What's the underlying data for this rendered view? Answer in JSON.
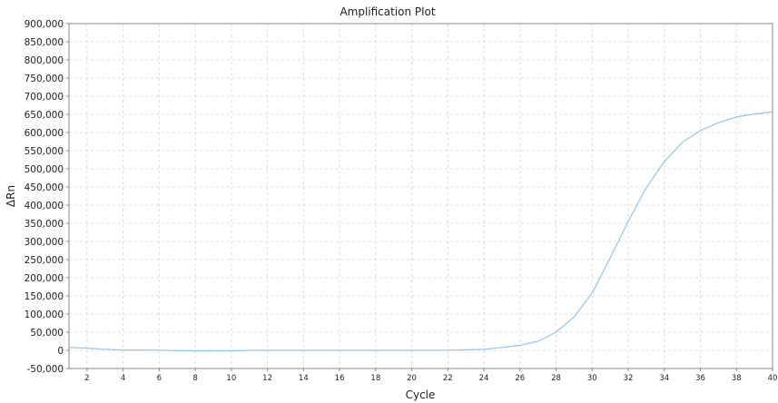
{
  "chart_data": {
    "type": "line",
    "title": "Amplification Plot",
    "xlabel": "Cycle",
    "ylabel": "ΔRn",
    "xlim": [
      1,
      40
    ],
    "ylim": [
      -50000,
      900000
    ],
    "grid": true,
    "legend": "none",
    "line_color": "#8ec4ef",
    "xticks": [
      2,
      4,
      6,
      8,
      10,
      12,
      14,
      16,
      18,
      20,
      22,
      24,
      26,
      28,
      30,
      32,
      34,
      36,
      38,
      40
    ],
    "xtick_labels": [
      "2",
      "4",
      "6",
      "8",
      "10",
      "12",
      "14",
      "16",
      "18",
      "20",
      "22",
      "24",
      "26",
      "28",
      "30",
      "32",
      "34",
      "36",
      "38",
      "40"
    ],
    "yticks": [
      -50000,
      0,
      50000,
      100000,
      150000,
      200000,
      250000,
      300000,
      350000,
      400000,
      450000,
      500000,
      550000,
      600000,
      650000,
      700000,
      750000,
      800000,
      850000,
      900000
    ],
    "ytick_labels": [
      "-50,000",
      "0",
      "50,000",
      "100,000",
      "150,000",
      "200,000",
      "250,000",
      "300,000",
      "350,000",
      "400,000",
      "450,000",
      "500,000",
      "550,000",
      "600,000",
      "650,000",
      "700,000",
      "750,000",
      "800,000",
      "850,000",
      "900,000"
    ],
    "series": [
      {
        "x": [
          1,
          2,
          3,
          4,
          5,
          6,
          7,
          8,
          9,
          10,
          11,
          12,
          13,
          14,
          15,
          16,
          17,
          18,
          19,
          20,
          21,
          22,
          23,
          24,
          25,
          26,
          27,
          28,
          29,
          30,
          31,
          32,
          33,
          34,
          35,
          36,
          37,
          38,
          39,
          40
        ],
        "values": [
          8000,
          6000,
          3000,
          1000,
          1000,
          500,
          -1000,
          -1500,
          -1500,
          -1500,
          0,
          0,
          0,
          0,
          0,
          0,
          0,
          0,
          0,
          0,
          0,
          500,
          1500,
          3000,
          8000,
          14000,
          25000,
          50000,
          92000,
          158000,
          255000,
          355000,
          448000,
          520000,
          573000,
          605000,
          627000,
          643000,
          651000,
          657000
        ]
      }
    ]
  }
}
